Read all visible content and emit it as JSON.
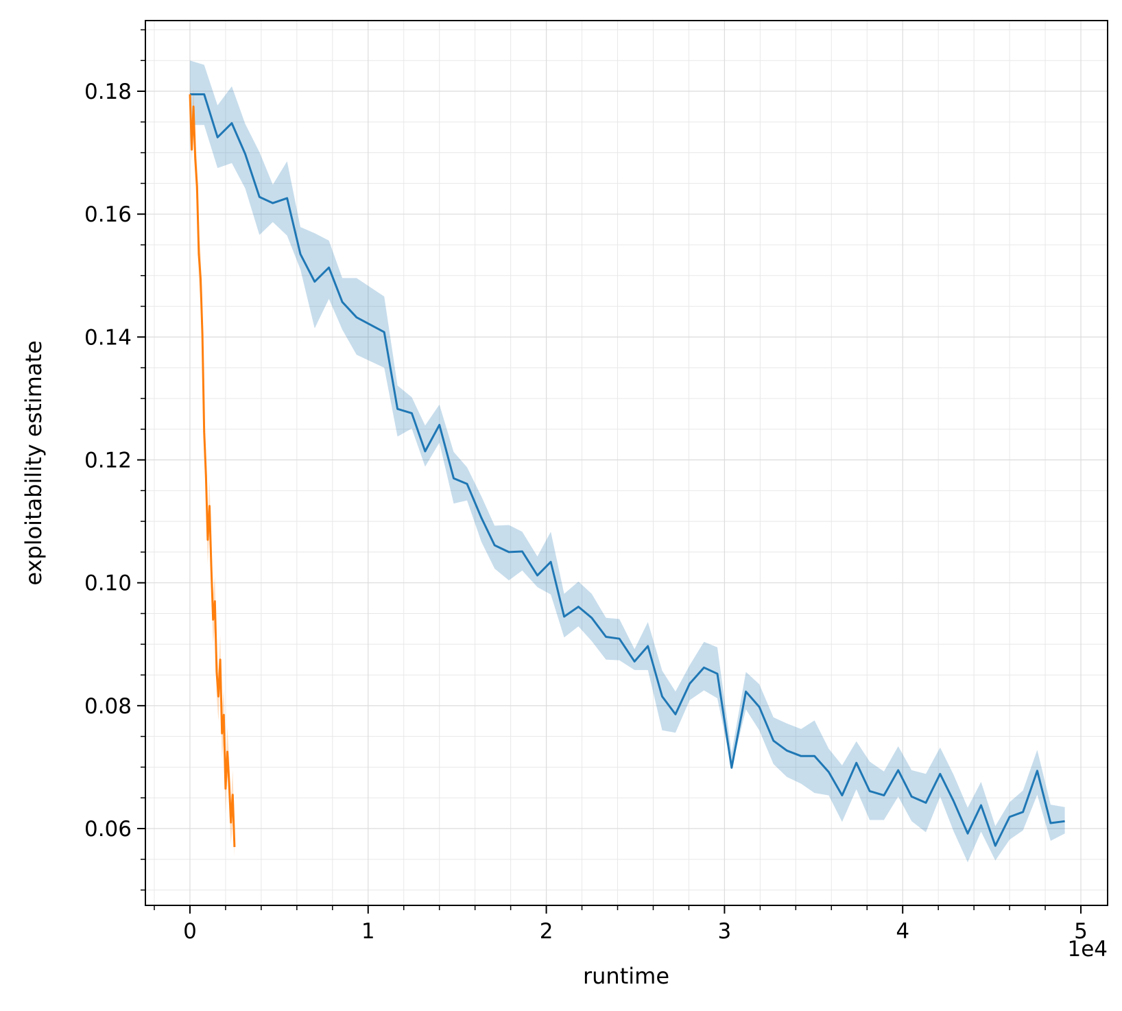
{
  "chart_data": {
    "type": "line",
    "title": "",
    "xlabel": "runtime",
    "ylabel": "exploitability estimate",
    "x_offset_label": "1e4",
    "xlim": [
      -0.25,
      5.15
    ],
    "ylim": [
      0.0475,
      0.1915
    ],
    "xticks": [
      0,
      1,
      2,
      3,
      4,
      5
    ],
    "xtick_labels": [
      "0",
      "1",
      "2",
      "3",
      "4",
      "5"
    ],
    "yticks": [
      0.06,
      0.08,
      0.1,
      0.12,
      0.14,
      0.16,
      0.18
    ],
    "ytick_labels": [
      "0.06",
      "0.08",
      "0.10",
      "0.12",
      "0.14",
      "0.16",
      "0.18"
    ],
    "grid": true,
    "legend": "none",
    "series": [
      {
        "color": "#1f77b4",
        "band_color": "#1f77b4",
        "x": [
          0.0,
          0.08,
          0.155,
          0.235,
          0.31,
          0.39,
          0.465,
          0.545,
          0.62,
          0.7,
          0.78,
          0.855,
          0.935,
          1.09,
          1.165,
          1.245,
          1.32,
          1.4,
          1.48,
          1.555,
          1.635,
          1.71,
          1.79,
          1.865,
          1.95,
          2.025,
          2.1,
          2.18,
          2.255,
          2.335,
          2.41,
          2.495,
          2.57,
          2.65,
          2.725,
          2.805,
          2.885,
          2.96,
          3.04,
          3.12,
          3.195,
          3.275,
          3.35,
          3.43,
          3.505,
          3.585,
          3.66,
          3.74,
          3.815,
          3.895,
          3.975,
          4.05,
          4.13,
          4.21,
          4.285,
          4.365,
          4.44,
          4.52,
          4.6,
          4.675,
          4.755,
          4.83,
          4.91
        ],
        "y": [
          0.1795,
          0.1795,
          0.1725,
          0.1748,
          0.1698,
          0.1628,
          0.1618,
          0.1626,
          0.1535,
          0.149,
          0.1513,
          0.1457,
          0.1432,
          0.1408,
          0.1283,
          0.1276,
          0.1214,
          0.1257,
          0.117,
          0.1161,
          0.1106,
          0.1061,
          0.105,
          0.1051,
          0.1012,
          0.1034,
          0.0945,
          0.0961,
          0.0943,
          0.0912,
          0.0909,
          0.0872,
          0.0897,
          0.0815,
          0.0786,
          0.0836,
          0.0862,
          0.0852,
          0.0699,
          0.0823,
          0.0798,
          0.0743,
          0.0727,
          0.0718,
          0.0718,
          0.0692,
          0.0654,
          0.0707,
          0.0661,
          0.0654,
          0.0695,
          0.0652,
          0.0642,
          0.0689,
          0.0645,
          0.0592,
          0.0638,
          0.0572,
          0.0619,
          0.0627,
          0.0694,
          0.0609,
          0.0612
        ],
        "y_low": [
          0.1745,
          0.1745,
          0.1675,
          0.1683,
          0.1642,
          0.1566,
          0.1587,
          0.1565,
          0.151,
          0.1414,
          0.1462,
          0.1412,
          0.1371,
          0.135,
          0.1238,
          0.1251,
          0.1189,
          0.1228,
          0.1129,
          0.1134,
          0.1067,
          0.1023,
          0.1004,
          0.102,
          0.0993,
          0.0981,
          0.0911,
          0.0929,
          0.0905,
          0.0875,
          0.0874,
          0.0858,
          0.0858,
          0.076,
          0.0756,
          0.0809,
          0.0825,
          0.0812,
          0.0699,
          0.0794,
          0.076,
          0.0705,
          0.0684,
          0.0673,
          0.0658,
          0.0654,
          0.0611,
          0.0664,
          0.0614,
          0.0614,
          0.0652,
          0.0612,
          0.0594,
          0.0652,
          0.0596,
          0.0545,
          0.0595,
          0.0548,
          0.0582,
          0.0597,
          0.0655,
          0.058,
          0.0592
        ],
        "y_high": [
          0.185,
          0.1843,
          0.1777,
          0.1808,
          0.1747,
          0.1701,
          0.1648,
          0.1686,
          0.1579,
          0.1569,
          0.1557,
          0.1496,
          0.1496,
          0.1466,
          0.1321,
          0.1302,
          0.1256,
          0.129,
          0.1213,
          0.1188,
          0.1141,
          0.1093,
          0.1094,
          0.1083,
          0.1043,
          0.1083,
          0.0982,
          0.1002,
          0.0982,
          0.0943,
          0.0941,
          0.0892,
          0.0936,
          0.0857,
          0.0823,
          0.0866,
          0.0904,
          0.0895,
          0.0723,
          0.0855,
          0.0835,
          0.0781,
          0.0771,
          0.0762,
          0.0776,
          0.073,
          0.0703,
          0.0742,
          0.0709,
          0.0693,
          0.0734,
          0.0695,
          0.0689,
          0.0732,
          0.0688,
          0.0634,
          0.0676,
          0.0604,
          0.0643,
          0.0662,
          0.0728,
          0.0639,
          0.0635
        ]
      },
      {
        "color": "#ff7f0e",
        "band_color": "#ff7f0e",
        "x": [
          0.0,
          0.01,
          0.02,
          0.03,
          0.04,
          0.05,
          0.06,
          0.07,
          0.08,
          0.09,
          0.1,
          0.11,
          0.12,
          0.13,
          0.14,
          0.15,
          0.16,
          0.17,
          0.18,
          0.19,
          0.2,
          0.21,
          0.22,
          0.23,
          0.24,
          0.25
        ],
        "y": [
          0.1795,
          0.1705,
          0.1775,
          0.169,
          0.1645,
          0.1535,
          0.1495,
          0.1405,
          0.1245,
          0.1175,
          0.107,
          0.1125,
          0.1025,
          0.094,
          0.097,
          0.0855,
          0.0815,
          0.0875,
          0.0755,
          0.0785,
          0.0665,
          0.0725,
          0.0675,
          0.061,
          0.0655,
          0.057
        ],
        "y_low": [
          0.1775,
          0.1685,
          0.1745,
          0.166,
          0.1605,
          0.1495,
          0.1455,
          0.1365,
          0.1205,
          0.1135,
          0.103,
          0.1085,
          0.0985,
          0.09,
          0.093,
          0.0815,
          0.0775,
          0.0835,
          0.0715,
          0.0745,
          0.0625,
          0.0685,
          0.0635,
          0.0575,
          0.0615,
          0.0555
        ],
        "y_high": [
          0.1815,
          0.1725,
          0.1805,
          0.172,
          0.1685,
          0.1575,
          0.1535,
          0.1445,
          0.1285,
          0.1215,
          0.111,
          0.1165,
          0.1065,
          0.098,
          0.101,
          0.0895,
          0.0855,
          0.0915,
          0.0795,
          0.0825,
          0.0705,
          0.0765,
          0.0715,
          0.0645,
          0.0695,
          0.0595
        ]
      }
    ]
  }
}
